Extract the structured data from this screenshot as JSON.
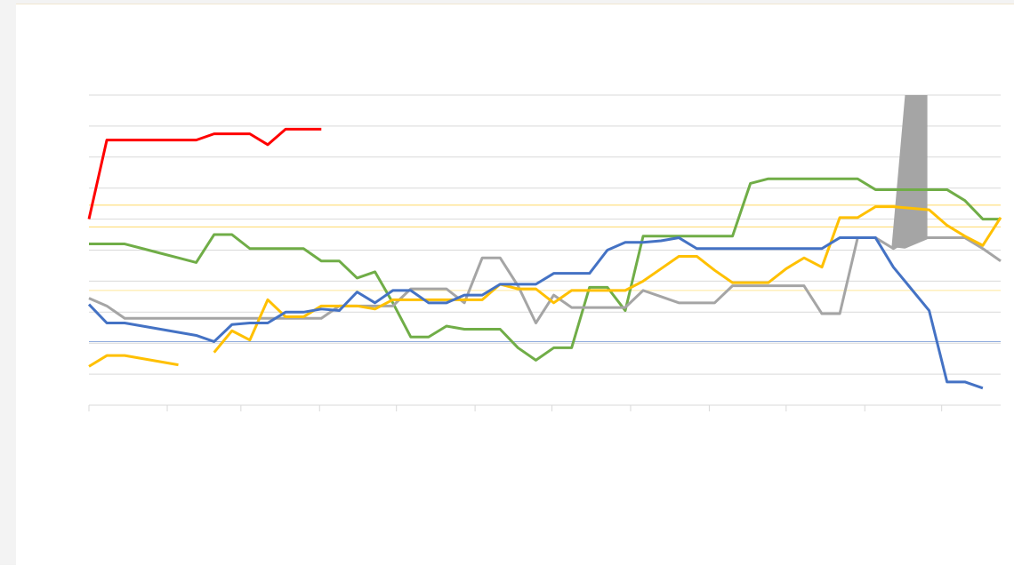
{
  "chart_data": {
    "type": "line",
    "x": [
      0,
      1,
      2,
      3,
      4,
      5,
      6,
      7,
      8,
      9,
      10,
      11,
      12,
      13,
      14,
      15,
      16,
      17,
      18,
      19,
      20,
      21,
      22,
      23,
      24,
      25,
      26,
      27,
      28,
      29,
      30,
      31,
      32,
      33,
      34,
      35,
      36,
      37,
      38,
      39,
      40,
      41,
      42,
      43,
      44,
      45,
      46,
      47,
      48,
      49,
      50,
      51
    ],
    "xlim": [
      0,
      51
    ],
    "xticks": [
      0,
      4.38,
      8.5,
      12.9,
      17.2,
      21.6,
      25.9,
      30.3,
      34.7,
      39,
      43.4,
      47.7
    ],
    "ylim": [
      0,
      10
    ],
    "yticks": [
      0,
      1,
      2,
      3,
      4,
      5,
      6,
      7,
      8,
      9,
      10
    ],
    "grid": true,
    "series": [
      {
        "color": "#ff0000",
        "values": [
          6.0,
          8.55,
          8.55,
          8.55,
          8.55,
          8.55,
          8.55,
          8.75,
          8.75,
          8.75,
          8.4,
          8.9,
          8.9,
          8.9,
          null,
          null,
          null,
          null,
          null,
          null,
          null,
          null,
          null,
          null,
          null,
          null,
          null,
          null,
          null,
          null,
          null,
          null,
          null,
          null,
          null,
          null,
          null,
          null,
          null,
          null,
          null,
          null,
          null,
          null,
          null,
          null,
          null,
          null,
          null,
          null,
          null,
          null
        ]
      },
      {
        "color": "#70ad47",
        "values": [
          5.2,
          5.2,
          5.2,
          5.05,
          4.9,
          4.75,
          4.6,
          5.5,
          5.5,
          5.05,
          5.05,
          5.05,
          5.05,
          4.65,
          4.65,
          4.1,
          4.3,
          3.3,
          2.2,
          2.2,
          2.55,
          2.45,
          2.45,
          2.45,
          1.85,
          1.45,
          1.85,
          1.85,
          3.8,
          3.8,
          3.05,
          5.45,
          5.45,
          5.45,
          5.45,
          5.45,
          5.45,
          7.15,
          7.3,
          7.3,
          7.3,
          7.3,
          7.3,
          7.3,
          6.95,
          6.95,
          6.95,
          6.95,
          6.95,
          6.6,
          6.0,
          6.0
        ]
      },
      {
        "color": "#a5a5a5",
        "values": [
          3.45,
          3.2,
          2.8,
          2.8,
          2.8,
          2.8,
          2.8,
          2.8,
          2.8,
          2.8,
          2.8,
          2.8,
          2.8,
          2.8,
          3.2,
          3.2,
          3.2,
          3.2,
          3.75,
          3.75,
          3.75,
          3.3,
          4.75,
          4.75,
          3.85,
          2.65,
          3.55,
          3.15,
          3.15,
          3.15,
          3.15,
          3.7,
          3.5,
          3.3,
          3.3,
          3.3,
          3.85,
          3.85,
          3.85,
          3.85,
          3.85,
          2.95,
          2.95,
          5.4,
          5.4,
          5.05,
          5.4,
          5.4,
          5.4,
          5.4,
          5.05,
          4.65
        ]
      },
      {
        "color": "#ffc000",
        "values": [
          1.25,
          1.6,
          1.6,
          1.5,
          1.4,
          1.3,
          null,
          1.7,
          2.4,
          2.1,
          3.4,
          2.85,
          2.85,
          3.2,
          3.2,
          3.2,
          3.1,
          3.4,
          3.4,
          3.4,
          3.4,
          3.4,
          3.4,
          3.9,
          3.75,
          3.75,
          3.3,
          3.7,
          3.7,
          3.7,
          3.7,
          4.0,
          4.4,
          4.8,
          4.8,
          4.35,
          3.95,
          3.95,
          3.95,
          4.4,
          4.75,
          4.45,
          6.05,
          6.05,
          6.4,
          6.4,
          6.35,
          6.3,
          5.8,
          5.45,
          5.15,
          6.05
        ]
      },
      {
        "color": "#4472c4",
        "values": [
          3.25,
          2.65,
          2.65,
          2.55,
          2.45,
          2.35,
          2.25,
          2.05,
          2.6,
          2.65,
          2.65,
          3.0,
          3.0,
          3.1,
          3.05,
          3.65,
          3.3,
          3.7,
          3.7,
          3.3,
          3.3,
          3.55,
          3.55,
          3.9,
          3.9,
          3.9,
          4.25,
          4.25,
          4.25,
          5.0,
          5.25,
          5.25,
          5.3,
          5.4,
          5.05,
          5.05,
          5.05,
          5.05,
          5.05,
          5.05,
          5.05,
          5.05,
          5.4,
          5.4,
          5.4,
          4.45,
          3.75,
          3.05,
          0.75,
          0.75,
          0.55,
          null
        ]
      }
    ],
    "band": {
      "color": "#a5a5a5",
      "x": [
        44.9,
        45.65,
        46.9
      ],
      "upper": [
        5.1,
        10,
        10
      ],
      "lower": [
        5.1,
        5.05,
        5.35
      ]
    },
    "reference_lines": [
      {
        "color": "#ffd966",
        "value": 6.45
      },
      {
        "color": "#ffd966",
        "value": 5.75
      },
      {
        "color": "#ffe699",
        "value": 3.7
      },
      {
        "color": "#8faadc",
        "value": 2.05
      }
    ]
  }
}
